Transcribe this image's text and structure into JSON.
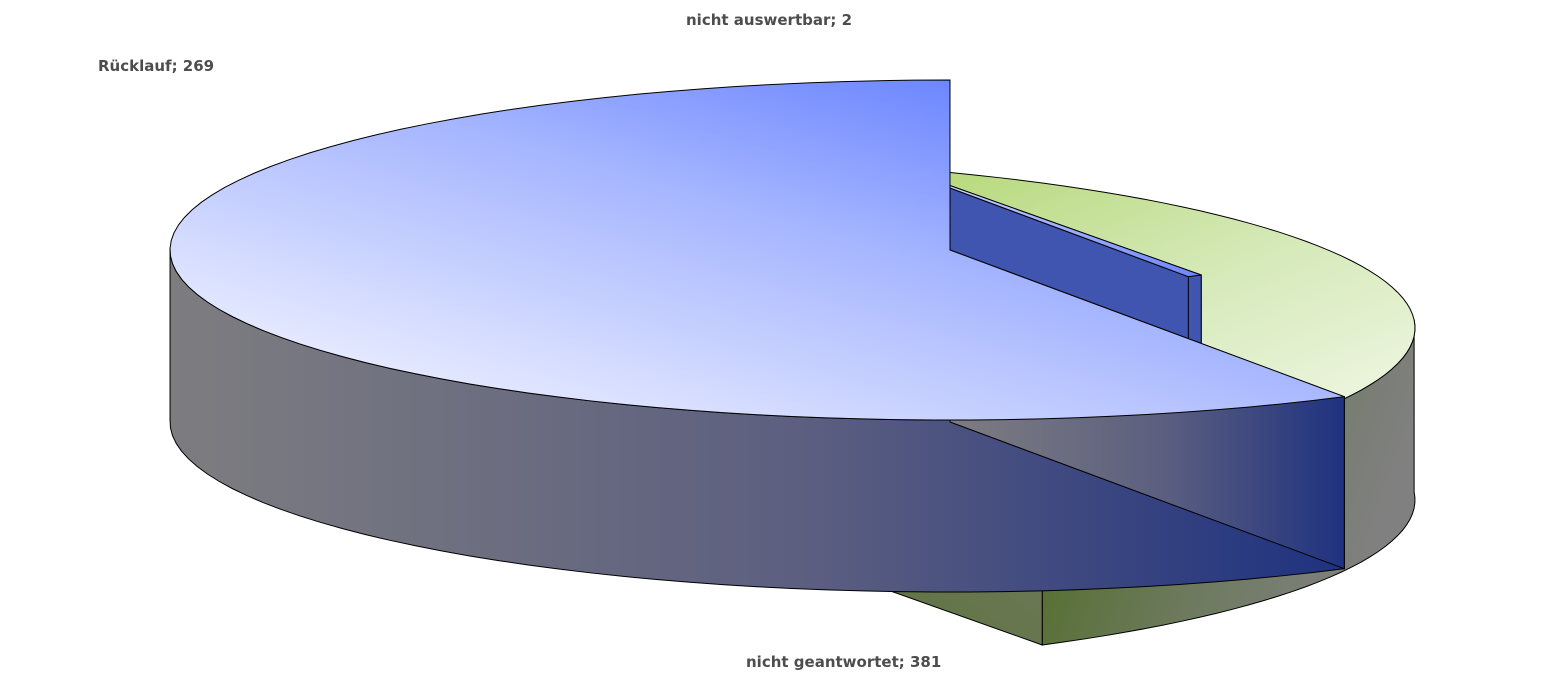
{
  "chart_data": {
    "type": "pie",
    "style": "3d-exploded",
    "title": "",
    "slices": [
      {
        "name": "Rücklauf",
        "value": 269,
        "label": "Rücklauf; 269",
        "top_color": "#a4cf55",
        "side_color": "#4d6a1f"
      },
      {
        "name": "nicht auswertbar",
        "value": 2,
        "label": "nicht auswertbar; 2",
        "top_color": "#8ea2ff",
        "side_color": "#2c3b7a"
      },
      {
        "name": "nicht geantwortet",
        "value": 381,
        "label": "nicht geantwortet; 381",
        "top_color": "#5b79ff",
        "side_color": "#26357a"
      }
    ],
    "legend": "none"
  }
}
